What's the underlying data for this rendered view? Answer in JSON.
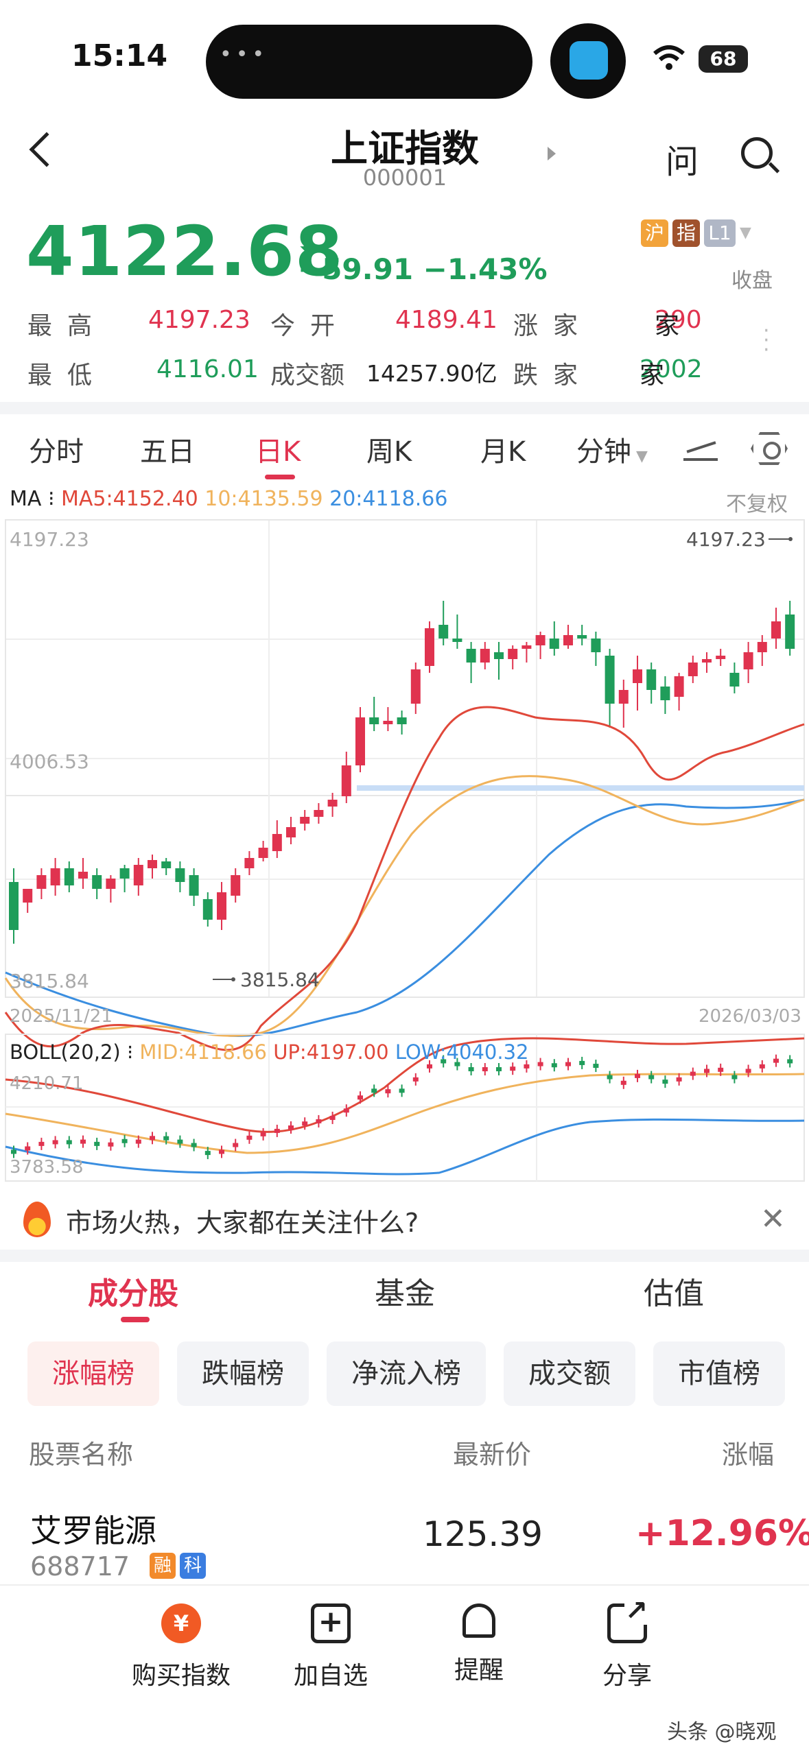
{
  "status_bar": {
    "time": "15:14",
    "battery": "68"
  },
  "header": {
    "title": "上证指数",
    "code": "000001",
    "ask_label": "问"
  },
  "quote": {
    "price": "4122.68",
    "change": "−59.91",
    "change_pct": "−1.43%",
    "tags": [
      "沪",
      "指",
      "L1"
    ],
    "state": "收盘"
  },
  "stats": {
    "high_label": "最高",
    "high": "4197.23",
    "open_label": "今开",
    "open": "4189.41",
    "up_label": "涨家",
    "up_count": "290",
    "up_unit": "家",
    "low_label": "最低",
    "low": "4116.01",
    "turnover_label": "成交额",
    "turnover": "14257.90亿",
    "down_label": "跌家",
    "down_count": "2002",
    "down_unit": "家"
  },
  "period_tabs": [
    "分时",
    "五日",
    "日K",
    "周K",
    "月K",
    "分钟"
  ],
  "active_period": "日K",
  "ma": {
    "label": "MA",
    "ma5": "MA5:4152.40",
    "ma10": "10:4135.59",
    "ma20": "20:4118.66",
    "adjust": "不复权"
  },
  "kline": {
    "y_top": "4197.23",
    "y_mid": "4006.53",
    "y_bottom": "3815.84",
    "max_label": "4197.23",
    "min_label": "3815.84",
    "date_start": "2025/11/21",
    "date_end": "2026/03/03"
  },
  "boll": {
    "label": "BOLL(20,2)",
    "mid": "MID:4118.66",
    "up": "UP:4197.00",
    "low": "LOW:4040.32",
    "y_top": "4210.71",
    "y_bottom": "3783.58"
  },
  "colors": {
    "up": "#e0334f",
    "down": "#1f9d5a",
    "ma5": "#e0483a",
    "ma10": "#f0b35c",
    "ma20": "#3a8ee0"
  },
  "banner": {
    "text": "市场火热，大家都在关注什么?"
  },
  "section_tabs": [
    "成分股",
    "基金",
    "估值"
  ],
  "rank_chips": [
    "涨幅榜",
    "跌幅榜",
    "净流入榜",
    "成交额",
    "市值榜"
  ],
  "table": {
    "headers": [
      "股票名称",
      "最新价",
      "涨幅"
    ],
    "rows": [
      {
        "name": "艾罗能源",
        "code": "688717",
        "tags": [
          "融",
          "科"
        ],
        "price": "125.39",
        "change": "+12.96%"
      }
    ]
  },
  "bottom_bar": [
    "购买指数",
    "加自选",
    "提醒",
    "分享"
  ],
  "watermark": "头条 @晓观"
}
